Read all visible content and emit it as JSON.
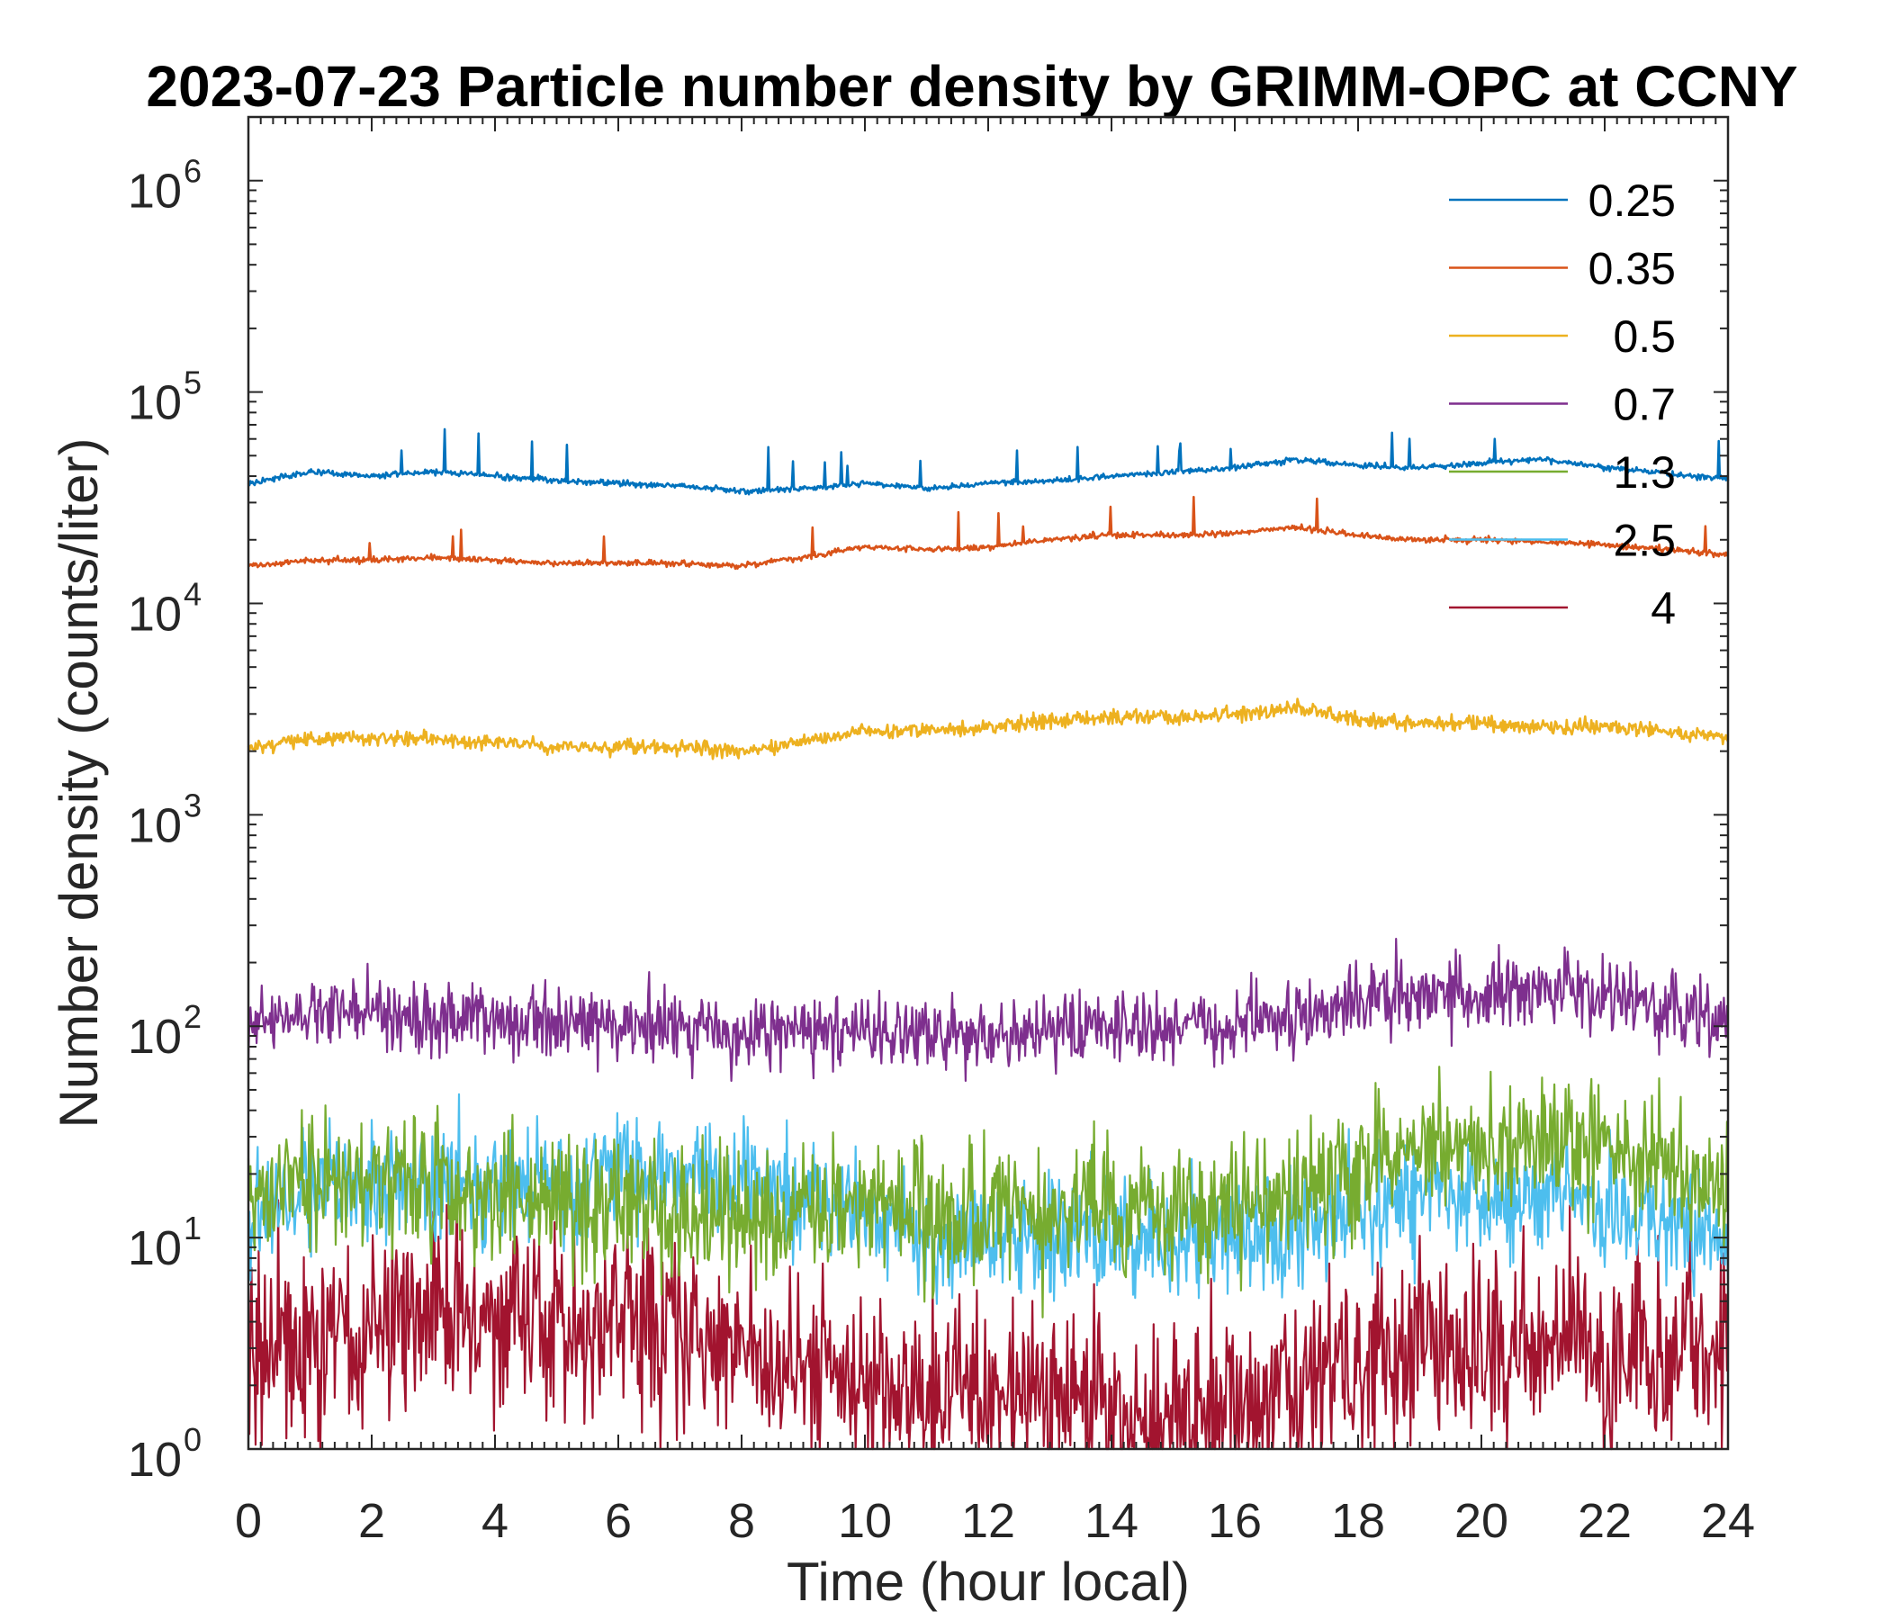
{
  "chart_data": {
    "type": "line",
    "title": "2023-07-23 Particle number density by GRIMM-OPC at CCNY",
    "xlabel": "Time (hour local)",
    "ylabel": "Number density (counts/liter)",
    "xlim": [
      0,
      24
    ],
    "ylim": [
      1,
      2000000
    ],
    "yscale": "log",
    "xticks": [
      0,
      2,
      4,
      6,
      8,
      10,
      12,
      14,
      16,
      18,
      20,
      22,
      24
    ],
    "xtick_labels": [
      "0",
      "2",
      "4",
      "6",
      "8",
      "10",
      "12",
      "14",
      "16",
      "18",
      "20",
      "22",
      "24"
    ],
    "yticks": [
      1,
      10,
      100,
      1000,
      10000,
      100000,
      1000000
    ],
    "ytick_labels": [
      {
        "base": "10",
        "exp": "0"
      },
      {
        "base": "10",
        "exp": "1"
      },
      {
        "base": "10",
        "exp": "2"
      },
      {
        "base": "10",
        "exp": "3"
      },
      {
        "base": "10",
        "exp": "4"
      },
      {
        "base": "10",
        "exp": "5"
      },
      {
        "base": "10",
        "exp": "6"
      }
    ],
    "legend_position": "top-right",
    "x": [
      0,
      1,
      2,
      3,
      4,
      5,
      6,
      7,
      8,
      9,
      10,
      11,
      12,
      13,
      14,
      15,
      16,
      17,
      18,
      19,
      20,
      21,
      22,
      23,
      24
    ],
    "series": [
      {
        "name": "0.25",
        "color": "#0072BD",
        "noise": 0.04,
        "values": [
          37000,
          42000,
          40000,
          42000,
          40000,
          38000,
          37000,
          36000,
          34000,
          35000,
          37000,
          35000,
          37000,
          38000,
          40000,
          42000,
          44000,
          48000,
          45000,
          44000,
          46000,
          48000,
          44000,
          41000,
          39000
        ]
      },
      {
        "name": "0.35",
        "color": "#D95319",
        "noise": 0.04,
        "values": [
          15000,
          16000,
          16000,
          16500,
          16000,
          15500,
          15500,
          15500,
          15000,
          16500,
          18500,
          18000,
          18500,
          20000,
          21000,
          21000,
          21500,
          23000,
          21000,
          20000,
          20000,
          19500,
          19000,
          18000,
          17000
        ]
      },
      {
        "name": "0.5",
        "color": "#EDB120",
        "noise": 0.1,
        "values": [
          2100,
          2300,
          2300,
          2300,
          2200,
          2100,
          2100,
          2100,
          2000,
          2200,
          2500,
          2500,
          2600,
          2800,
          2900,
          2900,
          3000,
          3200,
          2800,
          2700,
          2700,
          2600,
          2600,
          2500,
          2300
        ]
      },
      {
        "name": "0.7",
        "color": "#7E2F8E",
        "noise": 0.5,
        "values": [
          100,
          120,
          120,
          110,
          110,
          100,
          100,
          100,
          90,
          95,
          95,
          90,
          90,
          95,
          100,
          100,
          100,
          110,
          130,
          140,
          140,
          150,
          140,
          120,
          100
        ]
      },
      {
        "name": "1.3",
        "color": "#77AC30",
        "noise": 0.9,
        "values": [
          15,
          20,
          18,
          18,
          17,
          15,
          15,
          14,
          13,
          14,
          14,
          13,
          13,
          13,
          13,
          13,
          14,
          15,
          22,
          25,
          25,
          28,
          28,
          22,
          18
        ]
      },
      {
        "name": "2.5",
        "color": "#4DBEEE",
        "noise": 0.8,
        "values": [
          12,
          18,
          18,
          18,
          18,
          18,
          20,
          20,
          18,
          16,
          14,
          10,
          10,
          10,
          10,
          10,
          10,
          10,
          15,
          16,
          16,
          15,
          14,
          12,
          10
        ]
      },
      {
        "name": "4",
        "color": "#A2142F",
        "noise": 1.3,
        "values": [
          2.5,
          3.5,
          3.5,
          4,
          4,
          4,
          4,
          3.5,
          3,
          2.5,
          2,
          1.8,
          1.8,
          1.8,
          1.5,
          1.5,
          1.5,
          1.8,
          3,
          3,
          3,
          3,
          3,
          2.8,
          2.5
        ]
      }
    ]
  }
}
